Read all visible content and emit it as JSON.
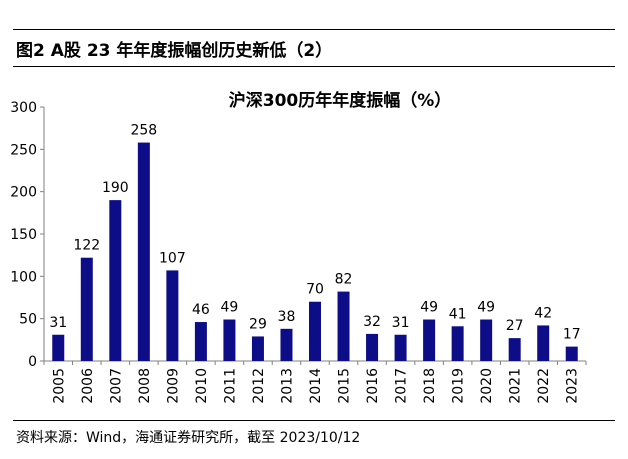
{
  "figure_title": "图2  A股 23 年年度振幅创历史新低（2）",
  "source": "资料来源：Wind，海通证券研究所，截至 2023/10/12",
  "colors": {
    "bar": "#0d0d87",
    "axis": "#808080"
  },
  "chart_data": {
    "type": "bar",
    "title": "沪深300历年年度振幅（%）",
    "xlabel": "",
    "ylabel": "",
    "categories": [
      "2005",
      "2006",
      "2007",
      "2008",
      "2009",
      "2010",
      "2011",
      "2012",
      "2013",
      "2014",
      "2015",
      "2016",
      "2017",
      "2018",
      "2019",
      "2020",
      "2021",
      "2022",
      "2023"
    ],
    "values": [
      31,
      122,
      190,
      258,
      107,
      46,
      49,
      29,
      38,
      70,
      82,
      32,
      31,
      49,
      41,
      49,
      27,
      42,
      17
    ],
    "ylim": [
      0,
      300
    ],
    "yticks": [
      0,
      50,
      100,
      150,
      200,
      250,
      300
    ],
    "data_labels": true,
    "grid": false,
    "legend": "none"
  }
}
